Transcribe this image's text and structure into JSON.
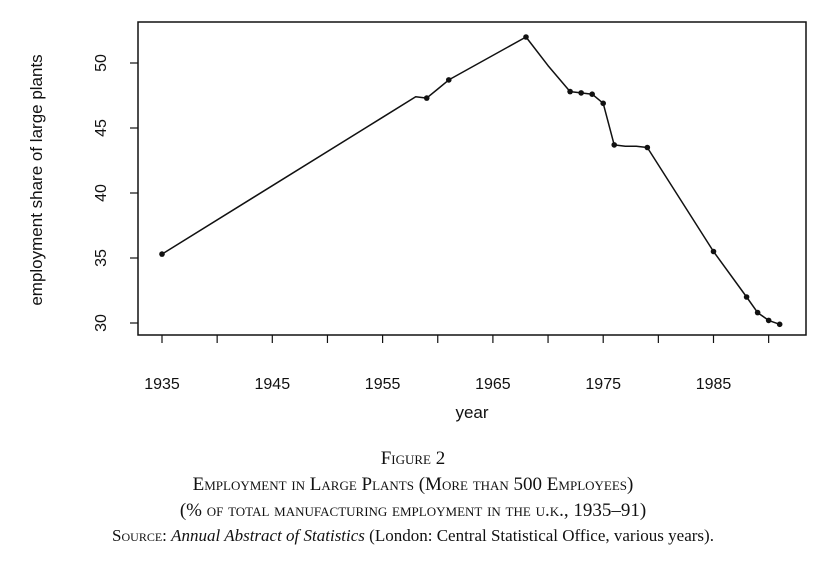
{
  "chart_data": {
    "type": "line",
    "xlabel": "year",
    "ylabel": "employment share of large plants",
    "xlim": [
      1935,
      1991
    ],
    "ylim": [
      30,
      52
    ],
    "x_ticks": [
      1935,
      1945,
      1955,
      1965,
      1975,
      1985
    ],
    "y_ticks": [
      30,
      35,
      40,
      45,
      50
    ],
    "grid": false,
    "legend": "none",
    "series": [
      {
        "x": [
          1935,
          1958,
          1959,
          1960,
          1961,
          1968,
          1970,
          1972,
          1973,
          1974,
          1975,
          1976,
          1977,
          1978,
          1979,
          1985,
          1988,
          1989,
          1990,
          1991
        ],
        "y": [
          35.3,
          47.4,
          47.3,
          48.0,
          48.7,
          52.0,
          49.8,
          47.8,
          47.7,
          47.6,
          46.9,
          43.7,
          43.6,
          43.6,
          43.5,
          35.5,
          32.0,
          30.8,
          30.2,
          29.9
        ],
        "marked_points": [
          1935,
          1959,
          1961,
          1968,
          1972,
          1973,
          1974,
          1975,
          1976,
          1979,
          1985,
          1988,
          1989,
          1990,
          1991
        ]
      }
    ]
  },
  "caption": {
    "figure_label": "Figure 2",
    "title": "Employment in Large Plants (More than 500 Employees)",
    "subtitle": "(% of total manufacturing employment in the u.k., 1935–91)",
    "source_label": "Source:",
    "source_title": "Annual Abstract of Statistics",
    "source_rest": " (London: Central Statistical Office, various years)."
  }
}
